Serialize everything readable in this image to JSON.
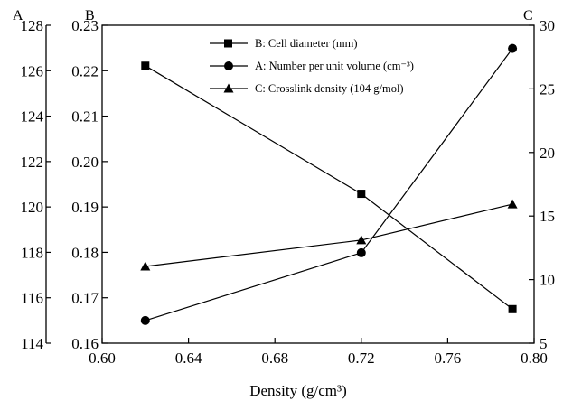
{
  "chart_data": {
    "type": "line",
    "title": "",
    "xlabel": "Density (g/cm³)",
    "x": [
      0.62,
      0.72,
      0.79
    ],
    "xlim": [
      0.6,
      0.8
    ],
    "x_ticks": [
      "0.60",
      "0.64",
      "0.68",
      "0.72",
      "0.76",
      "0.80"
    ],
    "axes": {
      "A": {
        "label": "A",
        "position": "outer-left",
        "ylim": [
          114,
          128
        ],
        "ticks": [
          "114",
          "116",
          "118",
          "120",
          "122",
          "124",
          "126",
          "128"
        ]
      },
      "B": {
        "label": "B",
        "position": "left",
        "ylim": [
          0.16,
          0.23
        ],
        "ticks": [
          "0.16",
          "0.17",
          "0.18",
          "0.19",
          "0.20",
          "0.21",
          "0.22",
          "0.23"
        ]
      },
      "C": {
        "label": "C",
        "position": "right",
        "ylim": [
          5,
          30
        ],
        "ticks": [
          "5",
          "10",
          "15",
          "20",
          "25",
          "30"
        ]
      }
    },
    "series": [
      {
        "name": "B: Cell diameter (mm)",
        "axis": "B",
        "marker": "square",
        "values": [
          0.2211,
          0.1929,
          0.1675
        ]
      },
      {
        "name": "A: Number per unit volume (cm⁻³)",
        "axis": "B",
        "marker": "circle",
        "values": [
          0.165,
          0.1799,
          0.2249
        ]
      },
      {
        "name": "C: Crosslink density (104 g/mol)",
        "axis": "B",
        "marker": "triangle",
        "values": [
          0.1769,
          0.1827,
          0.1906
        ]
      }
    ],
    "legend_position": "top-center",
    "grid": false
  }
}
